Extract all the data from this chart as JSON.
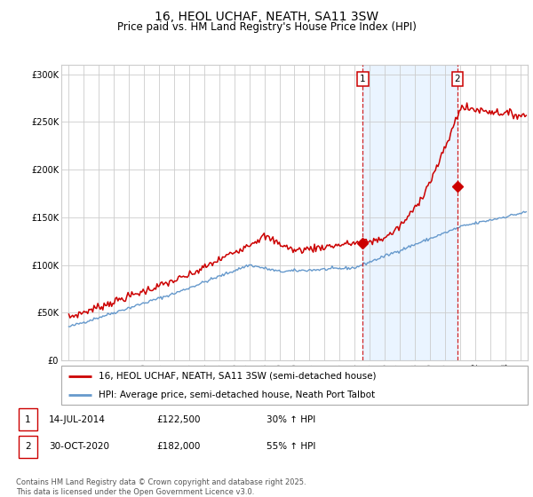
{
  "title": "16, HEOL UCHAF, NEATH, SA11 3SW",
  "subtitle": "Price paid vs. HM Land Registry's House Price Index (HPI)",
  "ylabel_ticks": [
    "£0",
    "£50K",
    "£100K",
    "£150K",
    "£200K",
    "£250K",
    "£300K"
  ],
  "ytick_vals": [
    0,
    50000,
    100000,
    150000,
    200000,
    250000,
    300000
  ],
  "ylim": [
    0,
    310000
  ],
  "xlim_start": 1994.5,
  "xlim_end": 2025.5,
  "red_color": "#cc0000",
  "blue_color": "#6699cc",
  "marker1_date": 2014.54,
  "marker1_price": 122500,
  "marker1_label": "1",
  "marker2_date": 2020.83,
  "marker2_price": 182000,
  "marker2_label": "2",
  "vline1_x": 2014.54,
  "vline2_x": 2020.83,
  "legend_line1": "16, HEOL UCHAF, NEATH, SA11 3SW (semi-detached house)",
  "legend_line2": "HPI: Average price, semi-detached house, Neath Port Talbot",
  "table_row1": [
    "1",
    "14-JUL-2014",
    "£122,500",
    "30% ↑ HPI"
  ],
  "table_row2": [
    "2",
    "30-OCT-2020",
    "£182,000",
    "55% ↑ HPI"
  ],
  "footer": "Contains HM Land Registry data © Crown copyright and database right 2025.\nThis data is licensed under the Open Government Licence v3.0.",
  "bg_shaded_color": "#ddeeff",
  "grid_color": "#cccccc",
  "title_fontsize": 10,
  "subtitle_fontsize": 8.5,
  "tick_fontsize": 7,
  "legend_fontsize": 7.5,
  "table_fontsize": 7.5,
  "footer_fontsize": 6
}
